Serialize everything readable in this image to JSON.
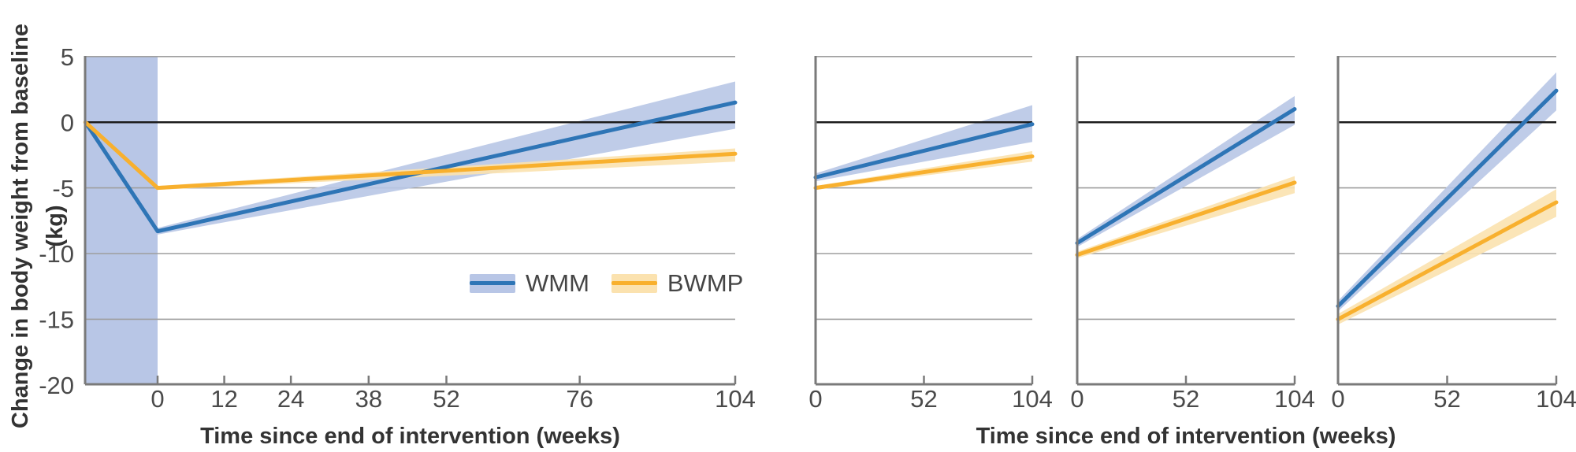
{
  "figure": {
    "y_axis_title": "Change in body weight from baseline (kg)",
    "x_axis_title_left": "Time since end of intervention (weeks)",
    "x_axis_title_right": "Time since end of intervention (weeks)"
  },
  "legend": {
    "items": [
      {
        "label": "WMM",
        "line_color": "#2e75b6",
        "band_color": "#b8c6e6"
      },
      {
        "label": "BWMP",
        "line_color": "#f8b02e",
        "band_color": "#fbe2af"
      }
    ]
  },
  "colors": {
    "intervention_shading": "#b8c6e6",
    "gridline": "#9e9e9e",
    "zero_line": "#1c1c1c",
    "axis": "#7a7a7a",
    "tick_label": "#4a4a4a",
    "background": "#ffffff"
  },
  "chart_data": [
    {
      "type": "line",
      "panel": "pooled",
      "xlabel": "Time since end of intervention (weeks)",
      "ylabel": "Change in body weight from baseline (kg)",
      "xlim": [
        -13,
        104
      ],
      "ylim": [
        -20,
        5
      ],
      "x_ticks": [
        0,
        12,
        24,
        38,
        52,
        76,
        104
      ],
      "y_ticks": [
        5,
        0,
        -5,
        -10,
        -15,
        -20
      ],
      "y_ticks_labeled": true,
      "gridline_values": [
        5,
        -5,
        -10,
        -15
      ],
      "zero_line_value": 0,
      "shaded_intervention_period": {
        "from_week": -13,
        "to_week": 0
      },
      "series": [
        {
          "name": "WMM",
          "line_color": "#2e75b6",
          "band_color": "#b8c6e6",
          "x": [
            -13,
            0,
            104
          ],
          "y": [
            0,
            -8.3,
            1.5
          ],
          "ci": {
            "x": [
              0,
              104
            ],
            "lower": [
              -8.55,
              -0.5
            ],
            "upper": [
              -8.05,
              3.1
            ]
          }
        },
        {
          "name": "BWMP",
          "line_color": "#f8b02e",
          "band_color": "#fbe2af",
          "x": [
            -13,
            0,
            104
          ],
          "y": [
            0,
            -5.0,
            -2.4
          ],
          "ci": {
            "x": [
              0,
              104
            ],
            "lower": [
              -5.15,
              -3.0
            ],
            "upper": [
              -4.85,
              -2.0
            ]
          }
        }
      ]
    },
    {
      "type": "line",
      "panel": "subgroup-1",
      "xlim": [
        0,
        104
      ],
      "ylim": [
        -20,
        5
      ],
      "x_ticks": [
        0,
        52,
        104
      ],
      "y_ticks": [
        5,
        0,
        -5,
        -10,
        -15,
        -20
      ],
      "y_ticks_labeled": false,
      "gridline_values": [
        5,
        -5,
        -10,
        -15
      ],
      "zero_line_value": 0,
      "series": [
        {
          "name": "WMM",
          "line_color": "#2e75b6",
          "band_color": "#b8c6e6",
          "x": [
            0,
            104
          ],
          "y": [
            -4.2,
            -0.15
          ],
          "ci": {
            "x": [
              0,
              104
            ],
            "lower": [
              -4.5,
              -1.5
            ],
            "upper": [
              -3.9,
              1.3
            ]
          }
        },
        {
          "name": "BWMP",
          "line_color": "#f8b02e",
          "band_color": "#fbe2af",
          "x": [
            0,
            104
          ],
          "y": [
            -5.0,
            -2.6
          ],
          "ci": {
            "x": [
              0,
              104
            ],
            "lower": [
              -5.15,
              -3.0
            ],
            "upper": [
              -4.85,
              -2.2
            ]
          }
        }
      ]
    },
    {
      "type": "line",
      "panel": "subgroup-2",
      "xlim": [
        0,
        104
      ],
      "ylim": [
        -20,
        5
      ],
      "x_ticks": [
        0,
        52,
        104
      ],
      "y_ticks": [
        5,
        0,
        -5,
        -10,
        -15,
        -20
      ],
      "y_ticks_labeled": false,
      "gridline_values": [
        5,
        -5,
        -10,
        -15
      ],
      "zero_line_value": 0,
      "series": [
        {
          "name": "WMM",
          "line_color": "#2e75b6",
          "band_color": "#b8c6e6",
          "x": [
            0,
            104
          ],
          "y": [
            -9.2,
            1.0
          ],
          "ci": {
            "x": [
              0,
              104
            ],
            "lower": [
              -9.5,
              -0.2
            ],
            "upper": [
              -8.9,
              2.0
            ]
          }
        },
        {
          "name": "BWMP",
          "line_color": "#f8b02e",
          "band_color": "#fbe2af",
          "x": [
            0,
            104
          ],
          "y": [
            -10.1,
            -4.6
          ],
          "ci": {
            "x": [
              0,
              104
            ],
            "lower": [
              -10.35,
              -5.4
            ],
            "upper": [
              -9.85,
              -4.1
            ]
          }
        }
      ]
    },
    {
      "type": "line",
      "panel": "subgroup-3",
      "xlim": [
        0,
        104
      ],
      "ylim": [
        -20,
        5
      ],
      "x_ticks": [
        0,
        52,
        104
      ],
      "y_ticks": [
        5,
        0,
        -5,
        -10,
        -15,
        -20
      ],
      "y_ticks_labeled": false,
      "gridline_values": [
        5,
        -5,
        -10,
        -15
      ],
      "zero_line_value": 0,
      "series": [
        {
          "name": "WMM",
          "line_color": "#2e75b6",
          "band_color": "#b8c6e6",
          "x": [
            0,
            104
          ],
          "y": [
            -14.0,
            2.4
          ],
          "ci": {
            "x": [
              0,
              104
            ],
            "lower": [
              -14.4,
              0.9
            ],
            "upper": [
              -13.6,
              3.8
            ]
          }
        },
        {
          "name": "BWMP",
          "line_color": "#f8b02e",
          "band_color": "#fbe2af",
          "x": [
            0,
            104
          ],
          "y": [
            -15.0,
            -6.1
          ],
          "ci": {
            "x": [
              0,
              104
            ],
            "lower": [
              -15.4,
              -7.2
            ],
            "upper": [
              -14.6,
              -5.1
            ]
          }
        }
      ]
    }
  ]
}
